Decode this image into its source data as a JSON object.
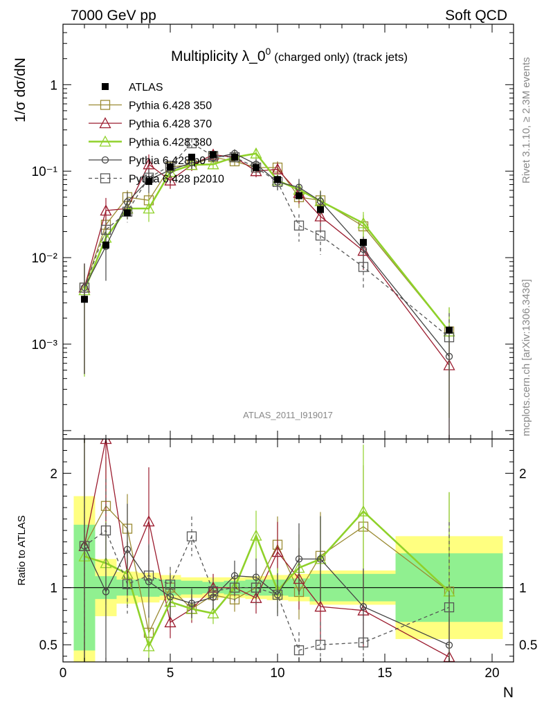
{
  "header": {
    "left": "7000 GeV pp",
    "right": "Soft QCD"
  },
  "side_labels": {
    "rivet": "Rivet 3.1.10, ≥ 2.3M events",
    "site": "mcplots.cern.ch [arXiv:1306.3436]"
  },
  "chart_data": {
    "type": "line",
    "title": "Multiplicity λ_0",
    "title_superscript": "0",
    "title_suffix": "(charged only) (track jets)",
    "analysis_label": "ATLAS_2011_I919017",
    "xlabel": "N",
    "ylabel": "1/σ dσ/dN",
    "ratio_ylabel": "Ratio to ATLAS",
    "xlim": [
      0,
      21
    ],
    "ylim": [
      8e-05,
      5
    ],
    "yscale": "log",
    "ratio_ylim": [
      0.35,
      2.3
    ],
    "x_ticks": [
      "0",
      "5",
      "10",
      "15",
      "20"
    ],
    "y_tick_labels": [
      "10⁻³",
      "10⁻²",
      "10⁻¹",
      "1"
    ],
    "ratio_ticks": [
      "0.5",
      "1",
      "2"
    ],
    "legend_position": "top-left",
    "data": {
      "name": "ATLAS",
      "color": "#000000",
      "bins": [
        [
          0.5,
          1.5
        ],
        [
          1.5,
          2.5
        ],
        [
          2.5,
          3.5
        ],
        [
          3.5,
          4.5
        ],
        [
          4.5,
          5.5
        ],
        [
          5.5,
          6.5
        ],
        [
          6.5,
          7.5
        ],
        [
          7.5,
          8.5
        ],
        [
          8.5,
          9.5
        ],
        [
          9.5,
          10.5
        ],
        [
          10.5,
          11.5
        ],
        [
          11.5,
          12.5
        ],
        [
          12.5,
          15.5
        ],
        [
          15.5,
          20.5
        ]
      ],
      "x": [
        1,
        2,
        3,
        4,
        5,
        6,
        7,
        8,
        9,
        10,
        11,
        12,
        14,
        18
      ],
      "y": [
        0.0033,
        0.014,
        0.033,
        0.076,
        0.112,
        0.145,
        0.155,
        0.145,
        0.11,
        0.08,
        0.052,
        0.036,
        0.015,
        0.00145
      ],
      "band_stat": [
        0.55,
        0.1,
        0.07,
        0.08,
        0.07,
        0.06,
        0.05,
        0.06,
        0.07,
        0.07,
        0.08,
        0.12,
        0.12,
        0.3
      ],
      "band_total": [
        0.8,
        0.25,
        0.14,
        0.13,
        0.11,
        0.09,
        0.09,
        0.09,
        0.1,
        0.11,
        0.12,
        0.15,
        0.15,
        0.45
      ]
    },
    "series": [
      {
        "name": "Pythia 6.428 350",
        "color": "#9a8a32",
        "marker": "square-open",
        "dash": false,
        "x": [
          1,
          2,
          3,
          4,
          5,
          6,
          7,
          8,
          9,
          10,
          11,
          12,
          14,
          18
        ],
        "y": [
          0.0045,
          0.024,
          0.05,
          0.046,
          0.112,
          0.118,
          0.145,
          0.13,
          0.11,
          0.11,
          0.05,
          0.046,
          0.023,
          0.0014
        ],
        "err": [
          0.9,
          0.25,
          0.2,
          0.25,
          0.15,
          0.12,
          0.12,
          0.12,
          0.15,
          0.18,
          0.25,
          0.3,
          0.35,
          0.9
        ]
      },
      {
        "name": "Pythia 6.428 370",
        "color": "#9b1b2e",
        "marker": "triangle-open",
        "dash": false,
        "x": [
          1,
          2,
          3,
          4,
          5,
          6,
          7,
          8,
          9,
          10,
          11,
          12,
          14,
          18
        ],
        "y": [
          0.0045,
          0.035,
          0.037,
          0.12,
          0.078,
          0.118,
          0.155,
          0.145,
          0.1,
          0.105,
          0.056,
          0.03,
          0.012,
          0.00057
        ],
        "err": [
          0.9,
          0.4,
          0.25,
          0.3,
          0.2,
          0.15,
          0.12,
          0.12,
          0.15,
          0.2,
          0.25,
          0.35,
          0.4,
          0.9
        ]
      },
      {
        "name": "Pythia 6.428 380",
        "color": "#8fd12a",
        "marker": "triangle-open",
        "dash": false,
        "x": [
          1,
          2,
          3,
          4,
          5,
          6,
          7,
          8,
          9,
          10,
          11,
          12,
          14,
          18
        ],
        "y": [
          0.0042,
          0.017,
          0.037,
          0.037,
          0.098,
          0.118,
          0.12,
          0.145,
          0.16,
          0.078,
          0.061,
          0.045,
          0.025,
          0.0014
        ],
        "err": [
          0.9,
          0.3,
          0.25,
          0.3,
          0.15,
          0.12,
          0.12,
          0.12,
          0.15,
          0.2,
          0.25,
          0.3,
          0.35,
          0.9
        ]
      },
      {
        "name": "Pythia 6.428 p0",
        "color": "#444444",
        "marker": "circle-open",
        "dash": false,
        "x": [
          1,
          2,
          3,
          4,
          5,
          6,
          7,
          8,
          9,
          10,
          11,
          12,
          14,
          18
        ],
        "y": [
          0.0045,
          0.0135,
          0.044,
          0.08,
          0.103,
          0.125,
          0.142,
          0.16,
          0.12,
          0.075,
          0.065,
          0.045,
          0.0125,
          0.00072
        ],
        "err": [
          0.9,
          0.6,
          0.3,
          0.3,
          0.2,
          0.15,
          0.12,
          0.12,
          0.15,
          0.2,
          0.25,
          0.3,
          0.4,
          0.9
        ]
      },
      {
        "name": "Pythia 6.428 p2010",
        "color": "#555555",
        "marker": "square-open",
        "dash": true,
        "x": [
          1,
          2,
          3,
          4,
          5,
          6,
          7,
          8,
          9,
          10,
          11,
          12,
          14,
          18
        ],
        "y": [
          0.0045,
          0.021,
          0.034,
          0.084,
          0.115,
          0.21,
          0.15,
          0.145,
          0.11,
          0.075,
          0.0235,
          0.018,
          0.0078,
          0.0012
        ],
        "err": [
          0.9,
          0.3,
          0.25,
          0.25,
          0.15,
          0.12,
          0.12,
          0.12,
          0.15,
          0.2,
          0.35,
          0.4,
          0.45,
          0.9
        ]
      }
    ]
  }
}
